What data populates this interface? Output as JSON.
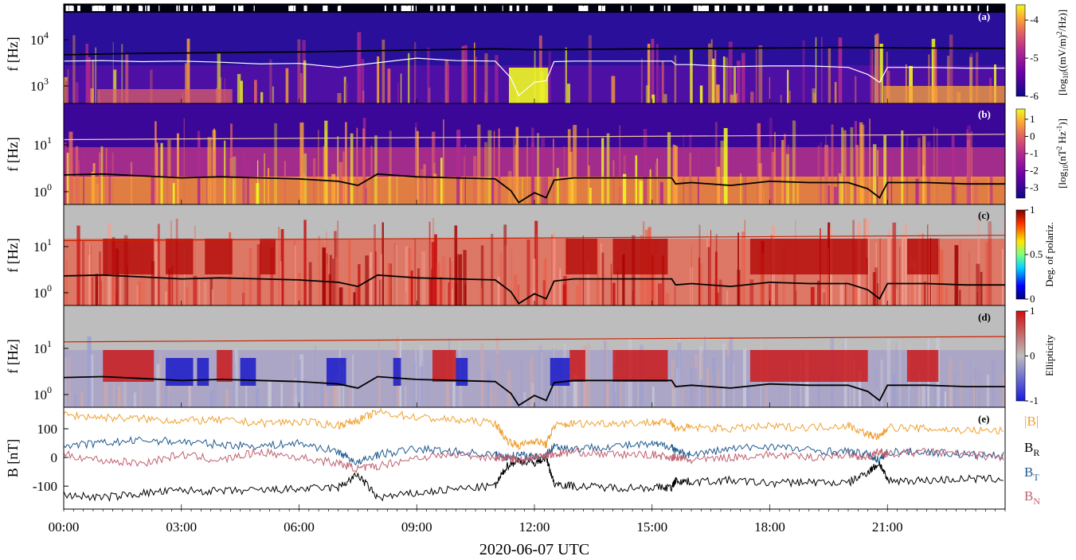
{
  "figure": {
    "xlabel": "2020-06-07 UTC",
    "x_ticks": [
      "00:00",
      "03:00",
      "06:00",
      "09:00",
      "12:00",
      "15:00",
      "18:00",
      "21:00"
    ]
  },
  "chart_data": [
    {
      "id": "a",
      "type": "heatmap",
      "panel_label": "(a)",
      "ylabel": "f [Hz]",
      "y_scale": "log",
      "y_ticks": [
        "10",
        "10"
      ],
      "y_tick_exponents": [
        "4",
        "3"
      ],
      "ylim": [
        400,
        70000
      ],
      "colormap": "plasma",
      "colorbar": {
        "label": "[log10((mV/m)^2/Hz)]",
        "label_parts": [
          "[log",
          "10",
          "((mV/m)",
          "2",
          "/Hz)]"
        ],
        "ticks": [
          "-4",
          "-5",
          "-6"
        ],
        "range": [
          -6,
          -3.6
        ]
      },
      "overlays": [
        {
          "color": "#000000",
          "x": [
            0,
            1,
            2,
            3,
            4,
            5,
            6,
            7,
            8,
            9,
            10,
            11,
            12,
            13,
            14,
            15,
            16,
            17,
            18,
            19,
            20,
            21,
            22,
            23,
            24
          ],
          "y": [
            5000,
            5200,
            5400,
            5500,
            5600,
            5700,
            5800,
            6000,
            6200,
            6400,
            6600,
            6800,
            6500,
            6600,
            6700,
            6800,
            6900,
            7000,
            7100,
            7200,
            7300,
            7200,
            7100,
            7000,
            7000
          ]
        },
        {
          "color": "#ffffff",
          "x": [
            0,
            1,
            2,
            3,
            4,
            5,
            6,
            7,
            8,
            9,
            10,
            11,
            11.4,
            11.6,
            12,
            12.3,
            12.5,
            13,
            14,
            15,
            15.5,
            15.6,
            16,
            17,
            18,
            19,
            20,
            20.5,
            20.8,
            21,
            22,
            23,
            24
          ],
          "y": [
            3600,
            3700,
            3500,
            3600,
            3400,
            3100,
            3200,
            2600,
            3300,
            4200,
            3700,
            3600,
            1500,
            600,
            1200,
            1300,
            3500,
            3600,
            3600,
            3600,
            3600,
            3000,
            3000,
            2700,
            2800,
            2800,
            2600,
            1800,
            1200,
            2600,
            2600,
            2500,
            2500
          ]
        }
      ]
    },
    {
      "id": "b",
      "type": "heatmap",
      "panel_label": "(b)",
      "ylabel": "f [Hz]",
      "y_scale": "log",
      "y_ticks": [
        "10",
        "10"
      ],
      "y_tick_exponents": [
        "1",
        "0"
      ],
      "ylim": [
        0.5,
        80
      ],
      "colormap": "plasma",
      "colorbar": {
        "label": "[log10(nT^2 Hz^-1)]",
        "label_parts": [
          "[log",
          "10",
          "(nT",
          "2",
          " Hz",
          "-1",
          ")]"
        ],
        "ticks": [
          "1",
          "0",
          "-1",
          "-2",
          "-3"
        ],
        "range": [
          -3.6,
          1.6
        ]
      },
      "overlays": [
        {
          "color": "#000000",
          "x": [
            0,
            1,
            2,
            3,
            4,
            5,
            6,
            7,
            7.5,
            8,
            9,
            10,
            11,
            11.4,
            11.6,
            12,
            12.3,
            12.5,
            13,
            14,
            15,
            15.5,
            15.6,
            16,
            17,
            18,
            19,
            20,
            20.5,
            20.8,
            21,
            22,
            23,
            24
          ],
          "y": [
            2.2,
            2.3,
            2.1,
            1.9,
            2.0,
            1.9,
            1.8,
            1.6,
            1.3,
            2.3,
            2.0,
            1.9,
            1.8,
            1.0,
            0.55,
            0.9,
            0.7,
            1.7,
            1.9,
            1.9,
            1.9,
            1.9,
            1.4,
            1.5,
            1.3,
            1.6,
            1.5,
            1.5,
            1.1,
            0.7,
            1.5,
            1.5,
            1.4,
            1.4
          ]
        },
        {
          "color": "#f7c59a",
          "x": [
            0,
            24
          ],
          "y": [
            13,
            17
          ]
        }
      ]
    },
    {
      "id": "c",
      "type": "heatmap",
      "panel_label": "(c)",
      "ylabel": "f [Hz]",
      "y_scale": "log",
      "y_ticks": [
        "10",
        "10"
      ],
      "y_tick_exponents": [
        "1",
        "0"
      ],
      "ylim": [
        0.5,
        80
      ],
      "colormap": "jet",
      "colorbar": {
        "label": "Deg. of polariz.",
        "ticks": [
          "1",
          "0.5",
          "0"
        ],
        "range": [
          0,
          1
        ]
      },
      "overlays": [
        {
          "color": "#000000",
          "x": [
            0,
            1,
            2,
            3,
            4,
            5,
            6,
            7,
            7.5,
            8,
            9,
            10,
            11,
            11.4,
            11.6,
            12,
            12.3,
            12.5,
            13,
            14,
            15,
            15.5,
            15.6,
            16,
            17,
            18,
            19,
            20,
            20.5,
            20.8,
            21,
            22,
            23,
            24
          ],
          "y": [
            2.2,
            2.3,
            2.1,
            1.9,
            2.0,
            1.9,
            1.8,
            1.6,
            1.3,
            2.3,
            2.0,
            1.9,
            1.8,
            1.0,
            0.55,
            0.9,
            0.7,
            1.7,
            1.9,
            1.9,
            1.9,
            1.9,
            1.4,
            1.5,
            1.3,
            1.6,
            1.5,
            1.5,
            1.1,
            0.7,
            1.5,
            1.5,
            1.4,
            1.4
          ]
        },
        {
          "color": "#cc2200",
          "x": [
            0,
            24
          ],
          "y": [
            13,
            17
          ]
        }
      ]
    },
    {
      "id": "d",
      "type": "heatmap",
      "panel_label": "(d)",
      "ylabel": "f [Hz]",
      "y_scale": "log",
      "y_ticks": [
        "10",
        "10"
      ],
      "y_tick_exponents": [
        "1",
        "0"
      ],
      "ylim": [
        0.5,
        80
      ],
      "colormap": "blue-gray-red",
      "colorbar": {
        "label": "Ellipticity",
        "ticks": [
          "1",
          "0",
          "-1"
        ],
        "range": [
          -1,
          1
        ]
      },
      "overlays": [
        {
          "color": "#000000",
          "x": [
            0,
            1,
            2,
            3,
            4,
            5,
            6,
            7,
            7.5,
            8,
            9,
            10,
            11,
            11.4,
            11.6,
            12,
            12.3,
            12.5,
            13,
            14,
            15,
            15.5,
            15.6,
            16,
            17,
            18,
            19,
            20,
            20.5,
            20.8,
            21,
            22,
            23,
            24
          ],
          "y": [
            2.2,
            2.3,
            2.1,
            1.9,
            2.0,
            1.9,
            1.8,
            1.6,
            1.3,
            2.3,
            2.0,
            1.9,
            1.8,
            1.0,
            0.55,
            0.9,
            0.7,
            1.7,
            1.9,
            1.9,
            1.9,
            1.9,
            1.4,
            1.5,
            1.3,
            1.6,
            1.5,
            1.5,
            1.1,
            0.7,
            1.5,
            1.5,
            1.4,
            1.4
          ]
        },
        {
          "color": "#cc2200",
          "x": [
            0,
            24
          ],
          "y": [
            13,
            17
          ]
        }
      ]
    },
    {
      "id": "e",
      "type": "line",
      "panel_label": "(e)",
      "ylabel": "B [nT]",
      "y_ticks": [
        "100",
        "0",
        "-100"
      ],
      "y_tick_values": [
        100,
        0,
        -100
      ],
      "ylim": [
        -180,
        175
      ],
      "series": [
        {
          "name": "|B|",
          "color": "#f0a030",
          "x": [
            0,
            1,
            2,
            3,
            4,
            5,
            6,
            7,
            7.5,
            8,
            9,
            10,
            11,
            11.3,
            11.6,
            12,
            12.3,
            12.5,
            13,
            14,
            15,
            15.5,
            15.6,
            16,
            17,
            18,
            19,
            20,
            20.5,
            20.8,
            21,
            22,
            23,
            24
          ],
          "y": [
            148,
            140,
            135,
            128,
            130,
            120,
            125,
            112,
            130,
            158,
            140,
            130,
            120,
            60,
            40,
            60,
            45,
            110,
            118,
            120,
            122,
            122,
            100,
            105,
            100,
            108,
            105,
            112,
            80,
            70,
            105,
            100,
            95,
            92
          ]
        },
        {
          "name": "B_R",
          "color": "#000000",
          "x": [
            0,
            1,
            2,
            3,
            4,
            5,
            6,
            7,
            7.5,
            8,
            9,
            10,
            11,
            11.3,
            11.6,
            12,
            12.3,
            12.5,
            13,
            14,
            15,
            15.5,
            15.6,
            16,
            17,
            18,
            19,
            20,
            20.5,
            20.8,
            21,
            22,
            23,
            24
          ],
          "y": [
            -130,
            -140,
            -125,
            -115,
            -118,
            -115,
            -110,
            -105,
            -60,
            -140,
            -125,
            -110,
            -100,
            -30,
            -10,
            -20,
            0,
            -90,
            -100,
            -105,
            -105,
            -105,
            -80,
            -85,
            -80,
            -90,
            -85,
            -90,
            -50,
            -20,
            -80,
            -80,
            -75,
            -75
          ]
        },
        {
          "name": "B_T",
          "color": "#1f5a8e",
          "x": [
            0,
            1,
            2,
            3,
            4,
            5,
            6,
            7,
            7.5,
            8,
            9,
            10,
            11,
            11.3,
            11.6,
            12,
            12.3,
            12.5,
            13,
            14,
            15,
            15.5,
            15.6,
            16,
            17,
            18,
            19,
            20,
            20.5,
            20.8,
            21,
            22,
            23,
            24
          ],
          "y": [
            40,
            50,
            60,
            55,
            45,
            40,
            50,
            20,
            -20,
            10,
            30,
            20,
            10,
            0,
            10,
            0,
            10,
            40,
            30,
            40,
            45,
            40,
            20,
            10,
            30,
            40,
            25,
            20,
            10,
            -10,
            20,
            20,
            10,
            5
          ]
        },
        {
          "name": "B_N",
          "color": "#c06070",
          "x": [
            0,
            1,
            2,
            3,
            4,
            5,
            6,
            7,
            7.5,
            8,
            9,
            10,
            11,
            11.3,
            11.6,
            12,
            12.3,
            12.5,
            13,
            14,
            15,
            15.5,
            15.6,
            16,
            17,
            18,
            19,
            20,
            20.5,
            20.8,
            21,
            22,
            23,
            24
          ],
          "y": [
            10,
            -10,
            -20,
            10,
            -10,
            20,
            0,
            -20,
            -40,
            -30,
            0,
            10,
            0,
            0,
            -10,
            0,
            10,
            10,
            20,
            10,
            10,
            0,
            0,
            -10,
            0,
            10,
            0,
            10,
            0,
            20,
            10,
            20,
            10,
            0
          ]
        }
      ],
      "legend_placement": "right"
    }
  ]
}
